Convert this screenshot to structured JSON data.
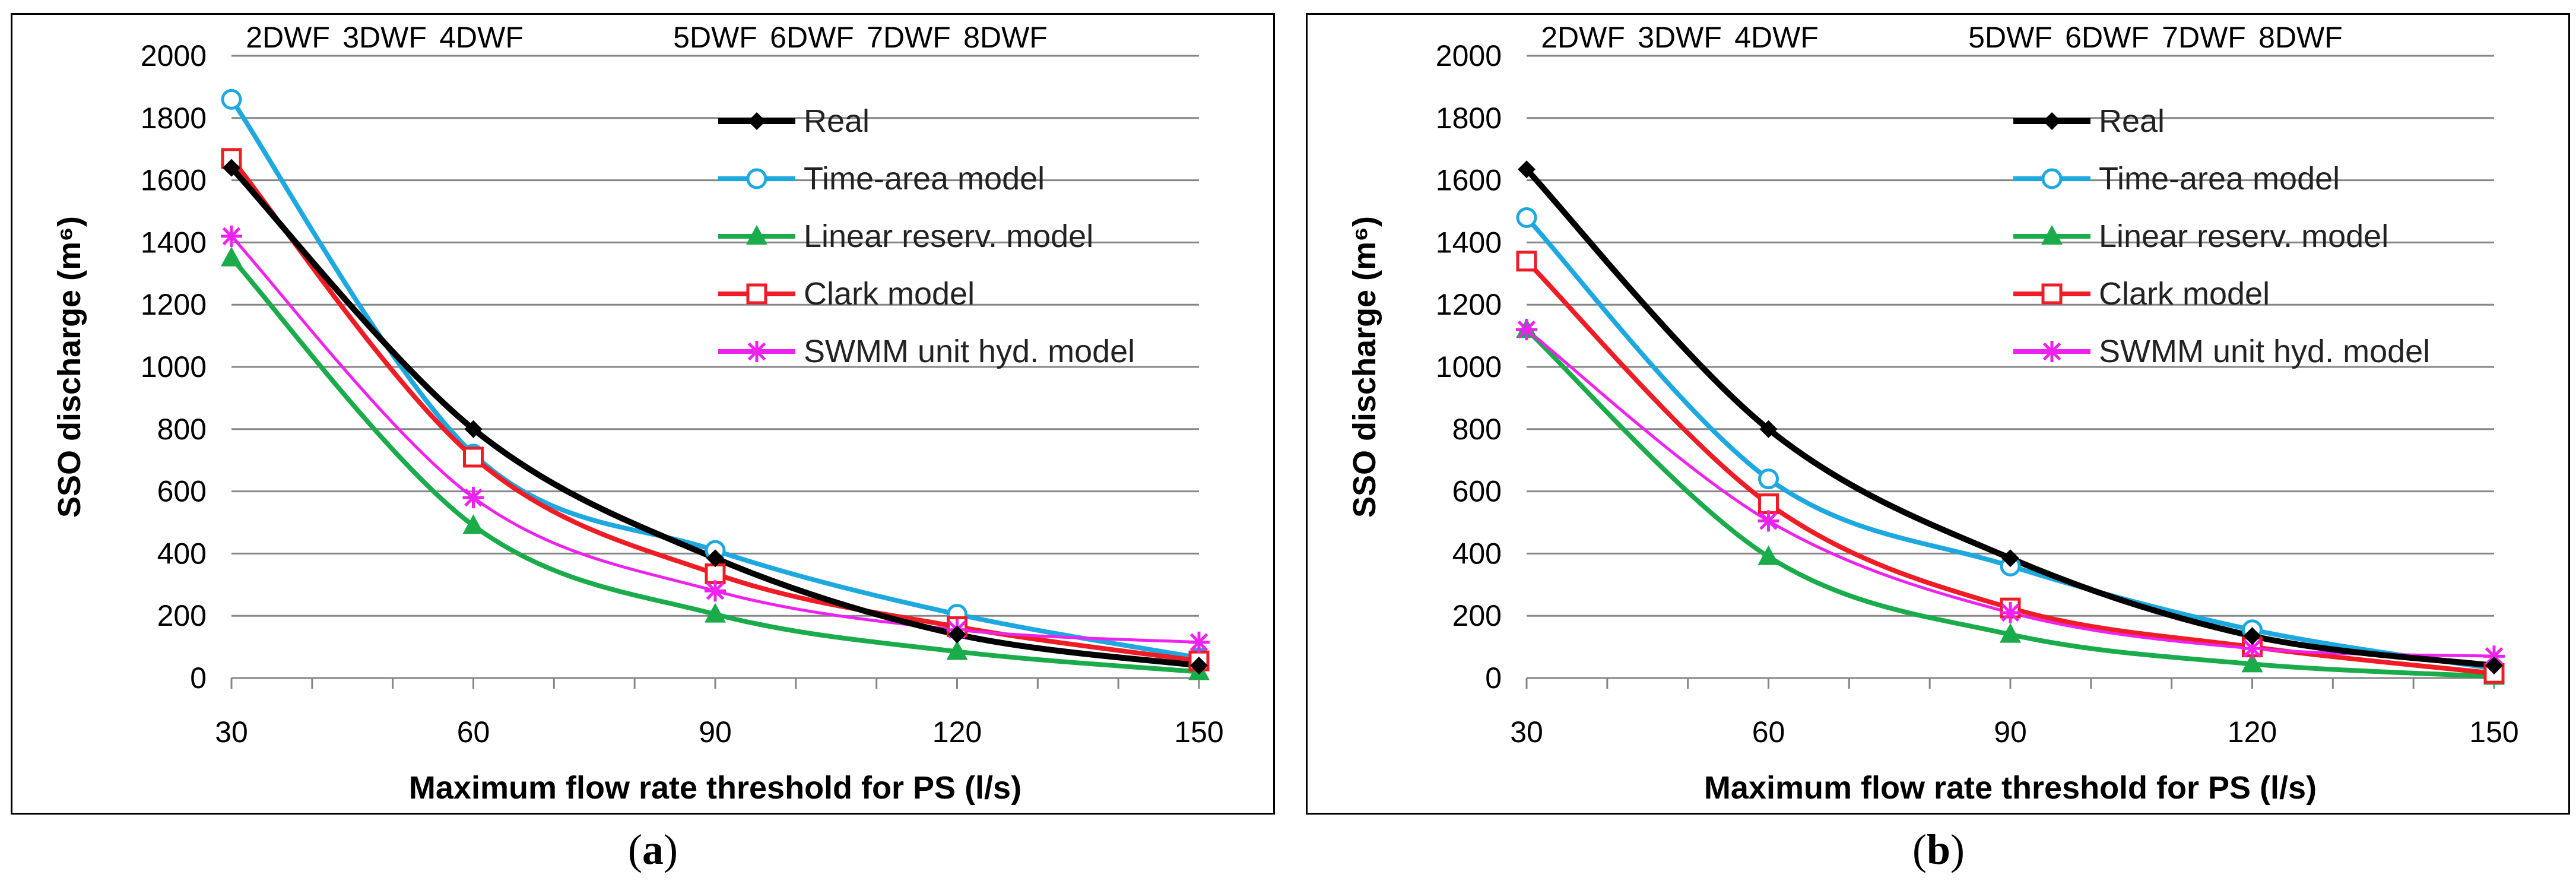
{
  "chart_data": [
    {
      "panel": "a",
      "type": "line",
      "xlabel": "Maximum flow rate threshold for PS (l/s)",
      "ylabel": "SSO discharge (m⁶)",
      "x": [
        30,
        60,
        90,
        120,
        150
      ],
      "xlim": [
        30,
        150
      ],
      "ylim": [
        0,
        2000
      ],
      "yticks": [
        0,
        200,
        400,
        600,
        800,
        1000,
        1200,
        1400,
        1600,
        1800,
        2000
      ],
      "top_axis_labels": [
        "2DWF",
        "3DWF",
        "4DWF",
        "5DWF",
        "6DWF",
        "7DWF",
        "8DWF"
      ],
      "top_axis_positions": [
        37,
        49,
        61,
        90,
        102,
        114,
        126
      ],
      "grid": true,
      "legend_position": "top-right",
      "series": [
        {
          "name": "Real",
          "color": "#000000",
          "marker": "diamond",
          "values": [
            1640,
            800,
            385,
            140,
            40
          ]
        },
        {
          "name": "Time-area model",
          "color": "#1ea8e0",
          "marker": "circle-open",
          "values": [
            1860,
            720,
            410,
            205,
            65
          ]
        },
        {
          "name": "Linear reserv. model",
          "color": "#1aab4a",
          "marker": "triangle",
          "values": [
            1350,
            490,
            205,
            85,
            20
          ]
        },
        {
          "name": "Clark model",
          "color": "#ee1c24",
          "marker": "square-open",
          "values": [
            1670,
            710,
            335,
            165,
            55
          ]
        },
        {
          "name": "SWMM unit hyd. model",
          "color": "#ee22ee",
          "marker": "star",
          "values": [
            1420,
            580,
            280,
            155,
            115
          ]
        }
      ]
    },
    {
      "panel": "b",
      "type": "line",
      "xlabel": "Maximum flow rate threshold for PS (l/s)",
      "ylabel": "SSO discharge (m⁶)",
      "x": [
        30,
        60,
        90,
        120,
        150
      ],
      "xlim": [
        30,
        150
      ],
      "ylim": [
        0,
        2000
      ],
      "yticks": [
        0,
        200,
        400,
        600,
        800,
        1000,
        1200,
        1400,
        1600,
        1800,
        2000
      ],
      "top_axis_labels": [
        "2DWF",
        "3DWF",
        "4DWF",
        "5DWF",
        "6DWF",
        "7DWF",
        "8DWF"
      ],
      "top_axis_positions": [
        37,
        49,
        61,
        90,
        102,
        114,
        126
      ],
      "grid": true,
      "legend_position": "top-right",
      "series": [
        {
          "name": "Real",
          "color": "#000000",
          "marker": "diamond",
          "values": [
            1635,
            800,
            385,
            135,
            40
          ]
        },
        {
          "name": "Time-area model",
          "color": "#1ea8e0",
          "marker": "circle-open",
          "values": [
            1480,
            640,
            360,
            155,
            30
          ]
        },
        {
          "name": "Linear reserv. model",
          "color": "#1aab4a",
          "marker": "triangle",
          "values": [
            1120,
            390,
            140,
            45,
            5
          ]
        },
        {
          "name": "Clark model",
          "color": "#ee1c24",
          "marker": "square-open",
          "values": [
            1340,
            560,
            225,
            100,
            15
          ]
        },
        {
          "name": "SWMM unit hyd. model",
          "color": "#ee22ee",
          "marker": "star",
          "values": [
            1120,
            505,
            210,
            95,
            70
          ]
        }
      ]
    }
  ],
  "captions": [
    "a",
    "b"
  ]
}
